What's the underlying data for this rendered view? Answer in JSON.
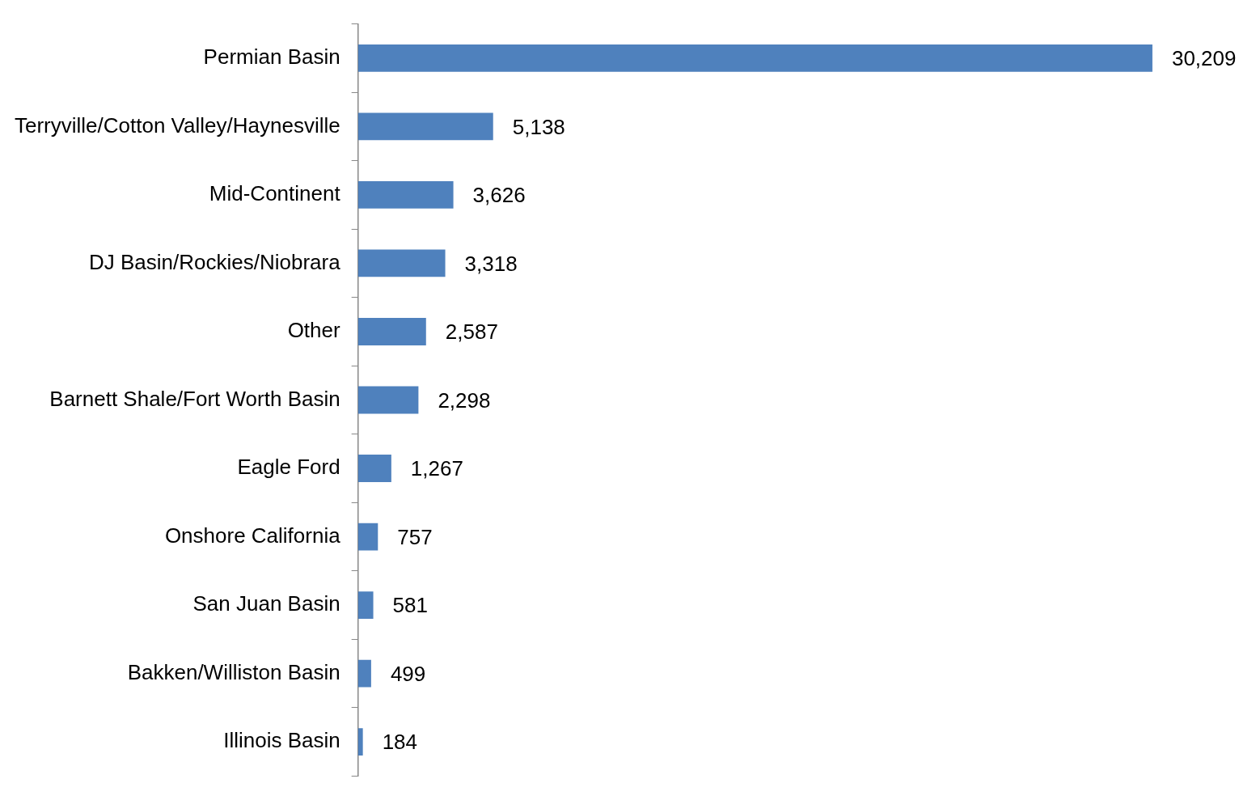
{
  "chart_data": {
    "type": "bar",
    "orientation": "horizontal",
    "categories": [
      "Permian Basin",
      "Terryville/Cotton Valley/Haynesville",
      "Mid-Continent",
      "DJ Basin/Rockies/Niobrara",
      "Other",
      "Barnett Shale/Fort Worth Basin",
      "Eagle Ford",
      "Onshore California",
      "San Juan Basin",
      "Bakken/Williston Basin",
      "Illinois Basin"
    ],
    "values": [
      30209,
      5138,
      3626,
      3318,
      2587,
      2298,
      1267,
      757,
      581,
      499,
      184
    ],
    "value_labels": [
      "30,209",
      "5,138",
      "3,626",
      "3,318",
      "2,587",
      "2,298",
      "1,267",
      "757",
      "581",
      "499",
      "184"
    ],
    "color": "#4f81bd",
    "legend": false
  }
}
